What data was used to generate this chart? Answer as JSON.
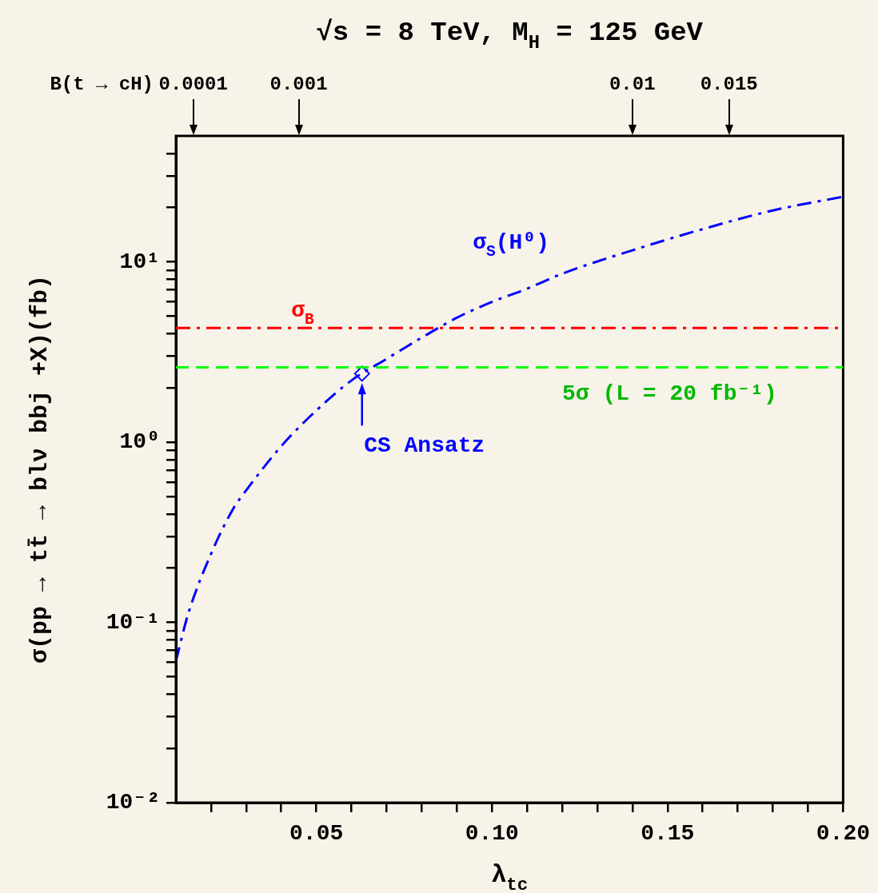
{
  "chart_data": {
    "type": "line",
    "title": "√s = 8 TeV, M$_{H}$ = 125 GeV",
    "xlabel": "λ$_{tc}$",
    "ylabel": "σ(pp → tt̄ → blν bbj +X)(fb)",
    "xlim": [
      0.01,
      0.2
    ],
    "xticks": [
      {
        "value": 0.02,
        "label": null
      },
      {
        "value": 0.03,
        "label": null
      },
      {
        "value": 0.04,
        "label": null
      },
      {
        "value": 0.05,
        "label": "0.05"
      },
      {
        "value": 0.06,
        "label": null
      },
      {
        "value": 0.07,
        "label": null
      },
      {
        "value": 0.08,
        "label": null
      },
      {
        "value": 0.09,
        "label": null
      },
      {
        "value": 0.1,
        "label": "0.10"
      },
      {
        "value": 0.11,
        "label": null
      },
      {
        "value": 0.12,
        "label": null
      },
      {
        "value": 0.13,
        "label": null
      },
      {
        "value": 0.14,
        "label": null
      },
      {
        "value": 0.15,
        "label": "0.15"
      },
      {
        "value": 0.16,
        "label": null
      },
      {
        "value": 0.17,
        "label": null
      },
      {
        "value": 0.18,
        "label": null
      },
      {
        "value": 0.19,
        "label": null
      },
      {
        "value": 0.2,
        "label": "0.20"
      }
    ],
    "log": "y",
    "ylim": [
      0.01,
      50
    ],
    "yticks": [
      {
        "value": 0.01,
        "label": "10⁻²"
      },
      {
        "value": 0.02,
        "label": null
      },
      {
        "value": 0.03,
        "label": null
      },
      {
        "value": 0.04,
        "label": null
      },
      {
        "value": 0.05,
        "label": null
      },
      {
        "value": 0.06,
        "label": null
      },
      {
        "value": 0.07,
        "label": null
      },
      {
        "value": 0.08,
        "label": null
      },
      {
        "value": 0.09,
        "label": null
      },
      {
        "value": 0.1,
        "label": "10⁻¹"
      },
      {
        "value": 0.2,
        "label": null
      },
      {
        "value": 0.3,
        "label": null
      },
      {
        "value": 0.4,
        "label": null
      },
      {
        "value": 0.5,
        "label": null
      },
      {
        "value": 0.6,
        "label": null
      },
      {
        "value": 0.7,
        "label": null
      },
      {
        "value": 0.8,
        "label": null
      },
      {
        "value": 0.9,
        "label": null
      },
      {
        "value": 1,
        "label": "10⁰"
      },
      {
        "value": 2,
        "label": null
      },
      {
        "value": 3,
        "label": null
      },
      {
        "value": 4,
        "label": null
      },
      {
        "value": 5,
        "label": null
      },
      {
        "value": 6,
        "label": null
      },
      {
        "value": 7,
        "label": null
      },
      {
        "value": 8,
        "label": null
      },
      {
        "value": 9,
        "label": null
      },
      {
        "value": 10,
        "label": "10¹"
      },
      {
        "value": 20,
        "label": null
      },
      {
        "value": 30,
        "label": null
      },
      {
        "value": 40,
        "label": null
      }
    ],
    "grid": false,
    "legend": false,
    "series": [
      {
        "name": "σ$_{S}$(H⁰)",
        "color": "#0000ff",
        "line_style": "dashdot",
        "marker": "none",
        "x": [
          0.01,
          0.0134,
          0.02,
          0.0264,
          0.03,
          0.04,
          0.05,
          0.06,
          0.07,
          0.08,
          0.09,
          0.1,
          0.11,
          0.12,
          0.14,
          0.16,
          0.18,
          0.2
        ],
        "values": [
          0.061,
          0.11,
          0.24,
          0.43,
          0.54,
          0.95,
          1.5,
          2.2,
          2.9,
          3.8,
          4.9,
          6.0,
          7.1,
          8.6,
          11.6,
          15.2,
          19.3,
          23
        ]
      },
      {
        "type": "scatter",
        "color": "#0000ff",
        "marker": "diamond",
        "x": [
          0.063
        ],
        "values": [
          2.4
        ]
      }
    ],
    "ref_lines": [
      {
        "axis": "y",
        "value": 4.3,
        "label": "σ$_{B}$",
        "color": "#ff0000",
        "line_style": "dashdot"
      },
      {
        "axis": "y",
        "value": 2.6,
        "color": "#00ff00",
        "line_style": "dashed"
      }
    ],
    "annotations": [
      {
        "text": "CS Ansatz",
        "x": 0.063,
        "y": 2.4
      },
      "B(t → cH)",
      "0.0001",
      "0.001",
      "0.01",
      "0.015",
      "5σ (L = 20 fb⁻¹)"
    ]
  }
}
